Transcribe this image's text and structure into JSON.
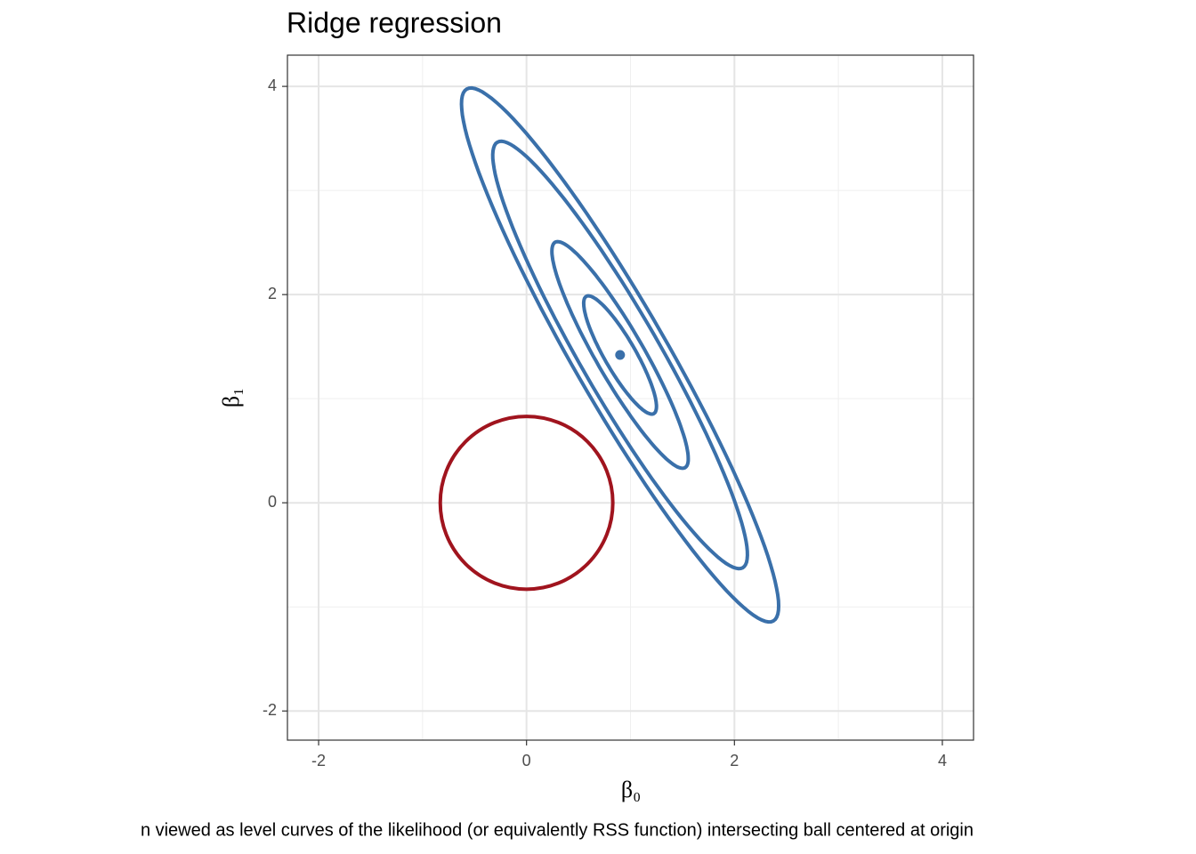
{
  "chart_data": {
    "type": "contour",
    "title": "Ridge regression",
    "xlabel": "β₀",
    "ylabel": "β₁",
    "caption": "n viewed as level curves of the likelihood (or equivalently RSS function) intersecting ball centered at origin",
    "xlim": [
      -2.3,
      4.3
    ],
    "ylim": [
      -2.28,
      4.3
    ],
    "xticks": [
      -2,
      0,
      2,
      4
    ],
    "yticks": [
      -2,
      0,
      2,
      4
    ],
    "xminor": [
      -1,
      1,
      3
    ],
    "yminor": [
      -1,
      1,
      3
    ],
    "grid": true,
    "estimate": {
      "x": 0.9,
      "y": 1.42,
      "color": "#3a70aa"
    },
    "contours": {
      "color": "#3a70aa",
      "cx": 0.9,
      "cy": 1.42,
      "angle": -60,
      "semi_major": [
        0.65,
        1.25,
        2.36,
        2.95
      ],
      "semi_minor": [
        0.15,
        0.23,
        0.38,
        0.45
      ]
    },
    "ball": {
      "color": "#a0141e",
      "cx": 0,
      "cy": 0,
      "r": 0.83
    }
  }
}
